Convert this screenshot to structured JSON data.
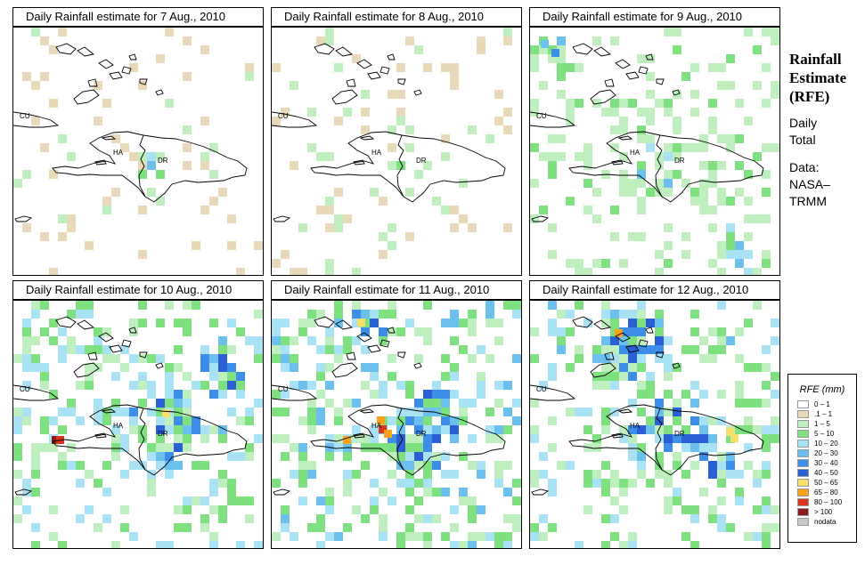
{
  "panels": [
    {
      "title": "Daily Rainfall estimate for  7 Aug., 2010",
      "labels": {
        "cuba": "CU",
        "haiti": "HA",
        "dr": "DR"
      },
      "seed": 7,
      "scheme": "day7"
    },
    {
      "title": "Daily Rainfall estimate for  8 Aug., 2010",
      "labels": {
        "cuba": "CU",
        "haiti": "HA",
        "dr": "DR"
      },
      "seed": 8,
      "scheme": "day8"
    },
    {
      "title": "Daily Rainfall estimate for  9 Aug., 2010",
      "labels": {
        "cuba": "CU",
        "haiti": "HA",
        "dr": "DR"
      },
      "seed": 9,
      "scheme": "day9"
    },
    {
      "title": "Daily Rainfall estimate for  10 Aug., 2010",
      "labels": {
        "cuba": "CU",
        "haiti": "HA",
        "dr": "DR"
      },
      "seed": 10,
      "scheme": "day10"
    },
    {
      "title": "Daily Rainfall estimate for  11 Aug., 2010",
      "labels": {
        "cuba": "CU",
        "haiti": "HA",
        "dr": "DR"
      },
      "seed": 11,
      "scheme": "day11"
    },
    {
      "title": "Daily Rainfall estimate for  12 Aug., 2010",
      "labels": {
        "cuba": "CU",
        "haiti": "HA",
        "dr": "DR"
      },
      "seed": 12,
      "scheme": "day12"
    }
  ],
  "side": {
    "title_line1": "Rainfall",
    "title_line2": "Estimate",
    "title_line3": "(RFE)",
    "sub1": "Daily",
    "sub2": "Total",
    "data1": "Data:",
    "data2": "NASA–",
    "data3": "TRMM"
  },
  "legend": {
    "title": "RFE (mm)",
    "items": [
      {
        "label": "0 – 1",
        "color": "#ffffff"
      },
      {
        "label": ".1 – 1",
        "color": "#e8d9b8"
      },
      {
        "label": "1 – 5",
        "color": "#bfeebf"
      },
      {
        "label": "5 – 10",
        "color": "#7fe07f"
      },
      {
        "label": "10 – 20",
        "color": "#a9e2f5"
      },
      {
        "label": "20 – 30",
        "color": "#6cc0ee"
      },
      {
        "label": "30 – 40",
        "color": "#3d8ee8"
      },
      {
        "label": "40 – 50",
        "color": "#2a5fd6"
      },
      {
        "label": "50 – 65",
        "color": "#f7e06a"
      },
      {
        "label": "65 – 80",
        "color": "#f7a21a"
      },
      {
        "label": "80 – 100",
        "color": "#d9351c"
      },
      {
        "label": "> 100",
        "color": "#8b1a1a"
      },
      {
        "label": "nodata",
        "color": "#c8c8c8"
      }
    ]
  }
}
